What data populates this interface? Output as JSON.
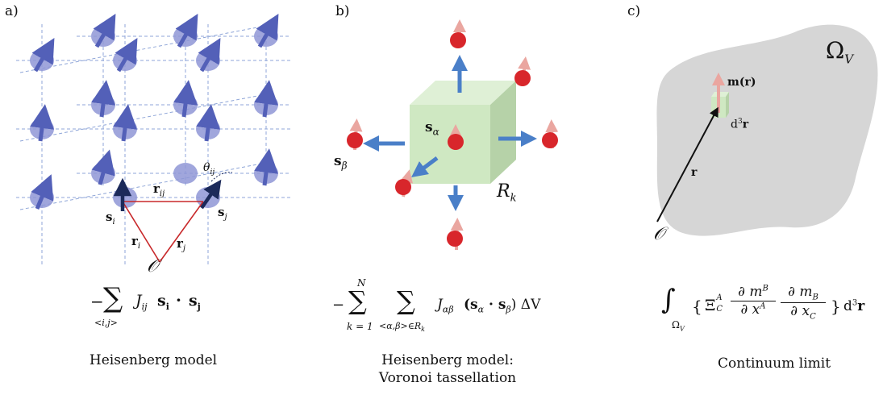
{
  "panel_a": {
    "label": "a)",
    "spin_i": "s",
    "spin_i_sub": "i",
    "spin_j": "s",
    "spin_j_sub": "j",
    "r_ij": "r",
    "r_ij_sub": "ij",
    "r_i": "r",
    "r_i_sub": "i",
    "r_j": "r",
    "r_j_sub": "j",
    "theta": "θ",
    "theta_sub": "ij",
    "origin": "𝒪",
    "formula_minus": "−",
    "formula_sum": "∑",
    "formula_under": "<i,j>",
    "formula_body": "J",
    "formula_body_sub": "ij",
    "formula_si": "s",
    "formula_si_sub": "i",
    "formula_dot": "·",
    "formula_sj": "s",
    "formula_sj_sub": "j",
    "caption": "Heisenberg model"
  },
  "panel_b": {
    "label": "b)",
    "s_alpha": "s",
    "s_alpha_sub": "α",
    "s_beta": "s",
    "s_beta_sub": "β",
    "region": "R",
    "region_sub": "k",
    "formula_minus": "−",
    "formula_sum": "∑",
    "formula_top": "N",
    "formula_bottom": "k = 1",
    "formula_under2": "<α,β>∈R",
    "formula_under2_sub": "k",
    "formula_body": "J",
    "formula_body_sub": "αβ",
    "formula_paren": "(s",
    "formula_sa_sub": "α",
    "formula_dot": " · s",
    "formula_sb_sub": "β",
    "formula_tail": ") ΔV",
    "caption_line1": "Heisenberg model:",
    "caption_line2": "Voronoi tassellation"
  },
  "panel_c": {
    "label": "c)",
    "omega": "Ω",
    "omega_sub": "V",
    "m_label": "m(r)",
    "d3r": "d",
    "d3r_sup": "3",
    "d3r_r": "r",
    "r_label": "r",
    "origin": "𝒪",
    "formula_int": "∫",
    "formula_int_sub": "Ω",
    "formula_int_subsub": "V",
    "formula_brace_l": "{",
    "formula_xi": "Ξ",
    "formula_xi_sup": "A",
    "formula_xi_sub": "C",
    "formula_num1": "∂ m",
    "formula_num1_sup": "B",
    "formula_den1": "∂ x",
    "formula_den1_sup": "A",
    "formula_num2": "∂ m",
    "formula_num2_sub": "B",
    "formula_den2": "∂ x",
    "formula_den2_sub": "C",
    "formula_brace_r": "}",
    "formula_d3r": "d",
    "formula_d3r_sup": "3",
    "formula_d3r_r": "r",
    "caption": "Continuum limit"
  },
  "colors": {
    "spin_blue": "#8f97d6",
    "spin_arrow_blue": "#5360b8",
    "dark_arrow": "#1c2a5a",
    "red_line": "#c8282a",
    "cube_green": "#cfe8c2",
    "arrow_blue": "#4a7fc8",
    "red_dot": "#d8262b",
    "pink_arrow": "#eaa6a0",
    "grey_region": "#d6d6d6"
  }
}
